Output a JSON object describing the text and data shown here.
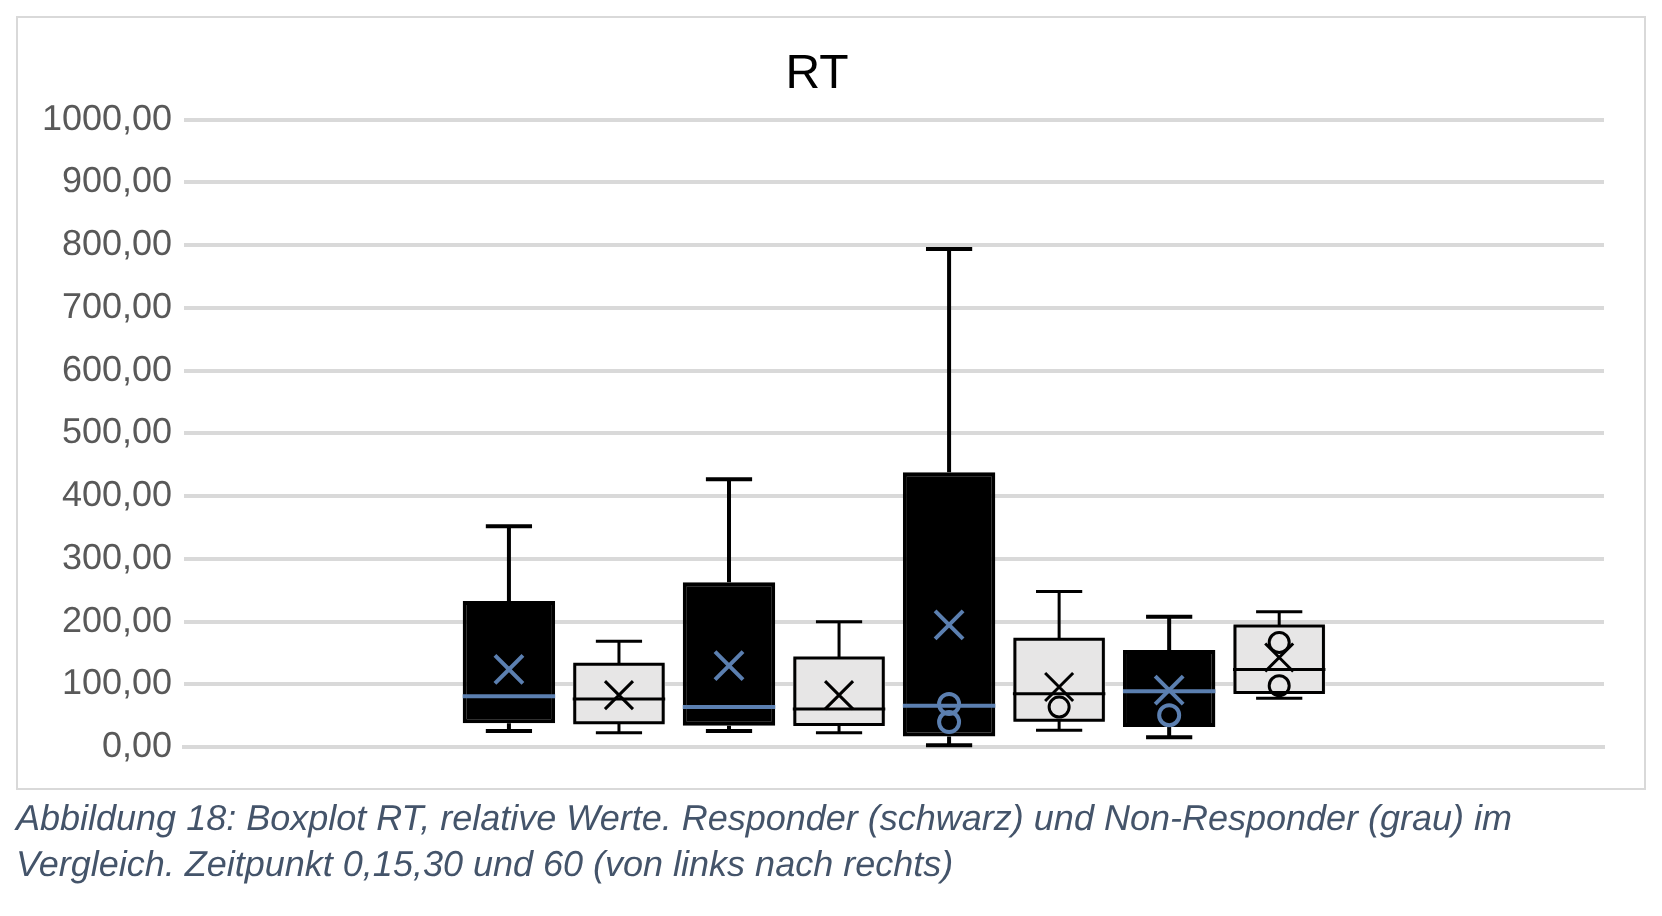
{
  "chart_data": {
    "type": "box",
    "title": "RT",
    "categories": [
      null
    ],
    "series": [
      {
        "color": "#000000",
        "boxes": [
          {
            "low": 26,
            "q1": 38,
            "median": 81,
            "q3": 233,
            "high": 352,
            "mean": 124
          }
        ]
      },
      {
        "color": "#e7e6e6",
        "boxes": [
          {
            "low": 23,
            "q1": 39,
            "median": 77,
            "q3": 132,
            "high": 169,
            "mean": 83
          }
        ]
      },
      {
        "color": "#000000",
        "boxes": [
          {
            "low": 26,
            "q1": 34,
            "median": 64,
            "q3": 263,
            "high": 427,
            "mean": 130
          }
        ]
      },
      {
        "color": "#e7e6e6",
        "boxes": [
          {
            "low": 23,
            "q1": 36,
            "median": 61,
            "q3": 142,
            "high": 200,
            "mean": 83
          }
        ]
      },
      {
        "color": "#000000",
        "boxes": [
          {
            "low": 3,
            "q1": 17,
            "median": 66,
            "q3": 438,
            "high": 794,
            "mean": 195,
            "outliers": [
              69,
              40
            ]
          }
        ]
      },
      {
        "color": "#e7e6e6",
        "boxes": [
          {
            "low": 27,
            "q1": 43,
            "median": 85,
            "q3": 172,
            "high": 248,
            "mean": 96,
            "outliers": [
              64
            ]
          }
        ]
      },
      {
        "color": "#000000",
        "boxes": [
          {
            "low": 16,
            "q1": 32,
            "median": 89,
            "q3": 155,
            "high": 208,
            "mean": 91,
            "outliers": [
              51
            ]
          }
        ]
      },
      {
        "color": "#e7e6e6",
        "boxes": [
          {
            "low": 78,
            "q1": 87,
            "median": 124,
            "q3": 193,
            "high": 216,
            "mean": 143,
            "outliers": [
              167,
              98
            ]
          }
        ]
      }
    ],
    "ylim": [
      0,
      1000
    ],
    "yticks": [
      {
        "value": 0,
        "label": "0,00"
      },
      {
        "value": 100,
        "label": "100,00"
      },
      {
        "value": 200,
        "label": "200,00"
      },
      {
        "value": 300,
        "label": "300,00"
      },
      {
        "value": 400,
        "label": "400,00"
      },
      {
        "value": 500,
        "label": "500,00"
      },
      {
        "value": 600,
        "label": "600,00"
      },
      {
        "value": 700,
        "label": "700,00"
      },
      {
        "value": 800,
        "label": "800,00"
      },
      {
        "value": 900,
        "label": "900,00"
      },
      {
        "value": 1000,
        "label": "1000,00"
      }
    ],
    "grid": "y",
    "legend": false,
    "marker": "circle",
    "annotations": [
      "Abbildung 18: Boxplot RT, relative Werte. Responder (schwarz) und Non-Responder (grau) im Vergleich. Zeitpunkt 0,15,30 und 60 (von links nach rechts)"
    ]
  }
}
